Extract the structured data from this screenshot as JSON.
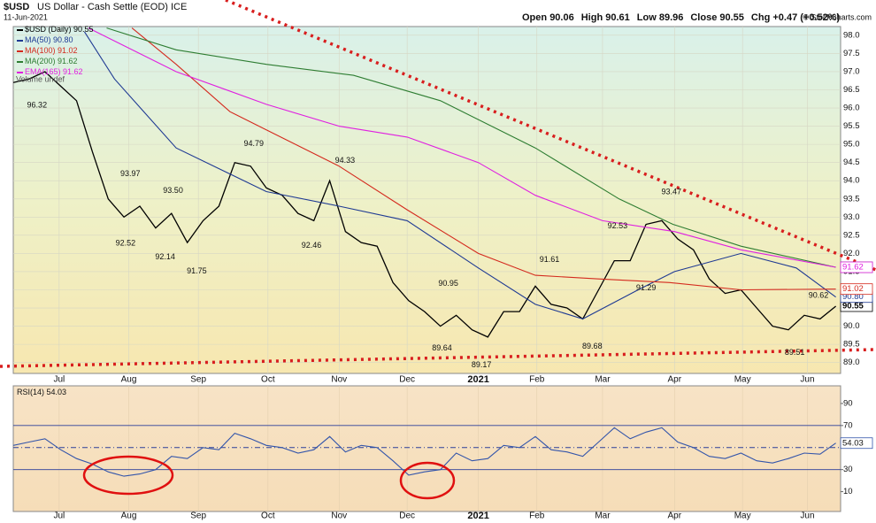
{
  "chart_data": [
    {
      "type": "line",
      "title": "$USD",
      "subtitle": "US Dollar - Cash Settle (EOD) ICE",
      "date": "11-Jun-2021",
      "quote": [
        {
          "label": "Open",
          "value": 90.06
        },
        {
          "label": "High",
          "value": 90.61
        },
        {
          "label": "Low",
          "value": 89.96
        },
        {
          "label": "Close",
          "value": 90.55
        },
        {
          "label": "Chg",
          "value": 0.47,
          "value_label": "+0.47 (+0.52%)"
        }
      ],
      "credit": "© StockCharts.com",
      "volume_note": "Volume undef",
      "x": [
        0,
        1,
        2,
        3,
        4,
        5,
        6,
        7,
        8,
        9,
        10,
        11,
        12,
        13,
        14,
        15,
        16,
        17,
        18,
        19,
        20,
        21,
        22,
        23,
        24,
        25,
        26,
        27,
        28,
        29,
        30,
        31,
        32,
        33,
        34,
        35,
        36,
        37,
        38,
        39,
        40,
        41,
        42,
        43,
        44,
        45,
        46,
        47,
        48,
        49,
        50,
        51,
        52
      ],
      "xlim": [
        0,
        52.3
      ],
      "xticks": [
        {
          "value": 2.9,
          "label": "Jul"
        },
        {
          "value": 7.3,
          "label": "Aug"
        },
        {
          "value": 11.7,
          "label": "Sep"
        },
        {
          "value": 16.1,
          "label": "Oct"
        },
        {
          "value": 20.6,
          "label": "Nov"
        },
        {
          "value": 24.9,
          "label": "Dec"
        },
        {
          "value": 29.4,
          "label": "2021",
          "bold": true
        },
        {
          "value": 33.1,
          "label": "Feb"
        },
        {
          "value": 37.25,
          "label": "Mar"
        },
        {
          "value": 41.8,
          "label": "Apr"
        },
        {
          "value": 46.1,
          "label": "May"
        },
        {
          "value": 50.2,
          "label": "Jun"
        }
      ],
      "ylim": [
        88.7,
        98.24
      ],
      "yticks": [
        {
          "value": 89,
          "label": "89.0"
        },
        {
          "value": 89.5,
          "label": "89.5"
        },
        {
          "value": 90,
          "label": "90.0"
        },
        {
          "value": 90.5,
          "label": "90.5"
        },
        {
          "value": 91,
          "label": "91.0"
        },
        {
          "value": 91.5,
          "label": "91.5"
        },
        {
          "value": 92,
          "label": "92.0"
        },
        {
          "value": 92.5,
          "label": "92.5"
        },
        {
          "value": 93,
          "label": "93.0"
        },
        {
          "value": 93.5,
          "label": "93.5"
        },
        {
          "value": 94,
          "label": "94.0"
        },
        {
          "value": 94.5,
          "label": "94.5"
        },
        {
          "value": 95,
          "label": "95.0"
        },
        {
          "value": 95.5,
          "label": "95.5"
        },
        {
          "value": 96,
          "label": "96.0"
        },
        {
          "value": 96.5,
          "label": "96.5"
        },
        {
          "value": 97,
          "label": "97.0"
        },
        {
          "value": 97.5,
          "label": "97.5"
        },
        {
          "value": 98,
          "label": "98.0"
        }
      ],
      "grid": true,
      "series": [
        {
          "name": "$USD (Daily)",
          "color": "#000000",
          "last_label": "90.55",
          "values": [
            96.7,
            96.8,
            97.0,
            96.6,
            96.2,
            94.8,
            93.5,
            93.0,
            93.3,
            92.7,
            93.1,
            92.3,
            92.9,
            93.3,
            94.5,
            94.4,
            93.8,
            93.6,
            93.1,
            92.9,
            94.0,
            92.6,
            92.3,
            92.2,
            91.2,
            90.7,
            90.4,
            90.0,
            90.3,
            89.9,
            89.7,
            90.4,
            90.4,
            91.1,
            90.6,
            90.5,
            90.2,
            91.0,
            91.8,
            91.8,
            92.8,
            92.9,
            92.4,
            92.1,
            91.3,
            90.9,
            91.0,
            90.5,
            90.0,
            89.9,
            90.3,
            90.2,
            90.55
          ]
        },
        {
          "name": "MA(50)",
          "color": "#1f3a93",
          "last_label": "90.80",
          "x": [
            4.5,
            6.4,
            10.3,
            16,
            20.6,
            24.9,
            29.4,
            33,
            36,
            39.5,
            41.8,
            46,
            49.5,
            52
          ],
          "values": [
            98.1,
            96.8,
            94.9,
            93.7,
            93.3,
            92.9,
            91.6,
            90.6,
            90.2,
            91.0,
            91.5,
            92.0,
            91.6,
            90.8
          ]
        },
        {
          "name": "MA(100)",
          "color": "#d42a1e",
          "last_label": "91.02",
          "x": [
            7.5,
            10.3,
            13.7,
            16,
            20.6,
            24.9,
            29.4,
            33,
            37,
            41.5,
            46,
            52
          ],
          "values": [
            98.2,
            97.2,
            95.9,
            95.4,
            94.4,
            93.2,
            92.0,
            91.4,
            91.3,
            91.2,
            91.0,
            91.02
          ]
        },
        {
          "name": "MA(200)",
          "color": "#2e7d32",
          "last_label": "91.62",
          "x": [
            5.9,
            10.3,
            16,
            21.5,
            27,
            33,
            38.3,
            41.7,
            46,
            52
          ],
          "values": [
            98.2,
            97.6,
            97.2,
            96.9,
            96.2,
            94.9,
            93.5,
            92.8,
            92.2,
            91.62
          ]
        },
        {
          "name": "EMA(165)",
          "color": "#e020e0",
          "last_label": "91.62",
          "x": [
            4.75,
            10.3,
            16,
            20.6,
            24.9,
            29.4,
            33,
            37.25,
            41.8,
            46,
            52
          ],
          "values": [
            98.2,
            97.0,
            96.1,
            95.5,
            95.2,
            94.5,
            93.6,
            92.9,
            92.6,
            92.1,
            91.62
          ]
        }
      ],
      "annotations": [
        {
          "x": 1.5,
          "value": 96.32,
          "label": "96.32",
          "position": "below"
        },
        {
          "x": 7.4,
          "value": 93.97,
          "label": "93.97",
          "position": "above"
        },
        {
          "x": 7.1,
          "value": 92.52,
          "label": "92.52",
          "position": "below"
        },
        {
          "x": 10.1,
          "value": 93.5,
          "label": "93.50",
          "position": "above"
        },
        {
          "x": 9.6,
          "value": 92.14,
          "label": "92.14",
          "position": "below"
        },
        {
          "x": 11.6,
          "value": 91.75,
          "label": "91.75",
          "position": "below"
        },
        {
          "x": 15.2,
          "value": 94.79,
          "label": "94.79",
          "position": "above"
        },
        {
          "x": 20.97,
          "value": 94.33,
          "label": "94.33",
          "position": "above"
        },
        {
          "x": 18.85,
          "value": 92.46,
          "label": "92.46",
          "position": "below"
        },
        {
          "x": 27.5,
          "value": 90.95,
          "label": "90.95",
          "position": "above"
        },
        {
          "x": 27.1,
          "value": 89.64,
          "label": "89.64",
          "position": "below"
        },
        {
          "x": 29.6,
          "value": 89.17,
          "label": "89.17",
          "position": "below"
        },
        {
          "x": 33.9,
          "value": 91.61,
          "label": "91.61",
          "position": "above"
        },
        {
          "x": 36.6,
          "value": 89.68,
          "label": "89.68",
          "position": "below"
        },
        {
          "x": 38.2,
          "value": 92.53,
          "label": "92.53",
          "position": "above"
        },
        {
          "x": 40,
          "value": 91.29,
          "label": "91.29",
          "position": "below"
        },
        {
          "x": 41.6,
          "value": 93.47,
          "label": "93.47",
          "position": "above"
        },
        {
          "x": 50.9,
          "value": 90.62,
          "label": "90.62",
          "position": "above"
        },
        {
          "x": 49.4,
          "value": 89.51,
          "label": "89.51",
          "position": "below"
        }
      ]
    },
    {
      "type": "line",
      "title": "RSI(14)",
      "last_label": "54.03",
      "ylim": [
        -8,
        106
      ],
      "yticks": [
        10,
        30,
        70,
        90
      ],
      "levels": [
        30,
        50,
        70
      ],
      "series": [
        {
          "name": "RSI(14)",
          "color": "#3355aa",
          "values": [
            52,
            55,
            58,
            48,
            40,
            35,
            28,
            24,
            26,
            30,
            42,
            40,
            50,
            48,
            63,
            58,
            52,
            50,
            45,
            48,
            60,
            46,
            52,
            50,
            38,
            25,
            28,
            30,
            45,
            38,
            40,
            52,
            50,
            60,
            48,
            46,
            42,
            55,
            68,
            58,
            64,
            68,
            55,
            50,
            42,
            40,
            45,
            38,
            36,
            40,
            45,
            44,
            54.03
          ]
        }
      ]
    }
  ]
}
